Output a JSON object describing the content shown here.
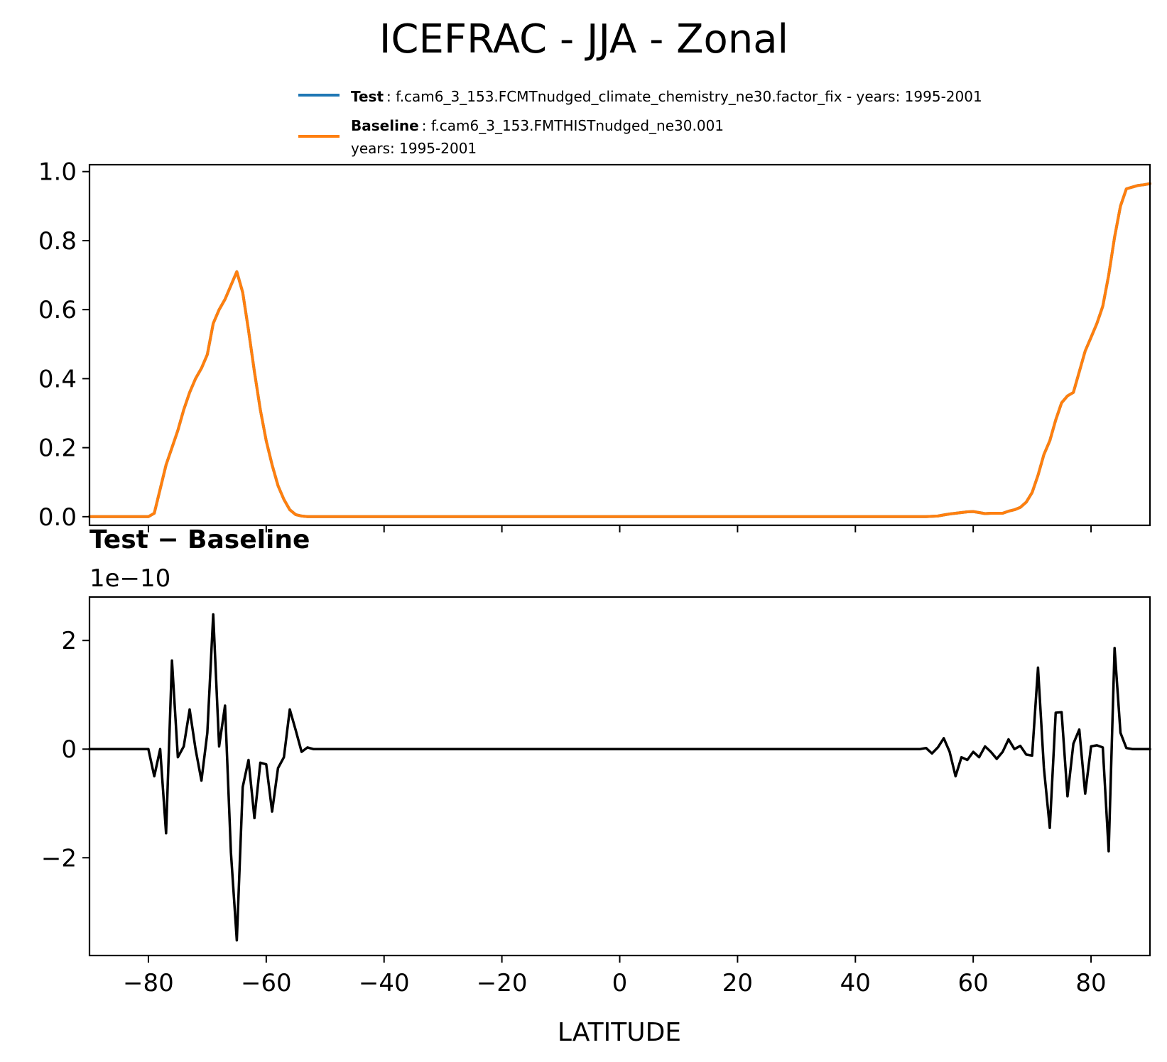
{
  "figure": {
    "title": "ICEFRAC - JJA - Zonal",
    "legend": {
      "test": {
        "label": "Test",
        "desc": ": f.cam6_3_153.FCMTnudged_climate_chemistry_ne30.factor_fix - years: 1995-2001",
        "color": "#1f77b4"
      },
      "baseline": {
        "label": "Baseline",
        "desc": ": f.cam6_3_153.FMTHISTnudged_ne30.001",
        "desc2": "years: 1995-2001",
        "color": "#ff7f0e"
      }
    },
    "diff_title": "Test − Baseline",
    "offset_label": "1e−10",
    "xlabel": "LATITUDE"
  },
  "chart_data": [
    {
      "type": "line",
      "xlim": [
        -90,
        90
      ],
      "ylim": [
        -0.025,
        1.02
      ],
      "xticks": [
        -80,
        -60,
        -40,
        -20,
        0,
        20,
        40,
        60,
        80
      ],
      "yticks": [
        0.0,
        0.2,
        0.4,
        0.6,
        0.8,
        1.0
      ],
      "ytick_labels": [
        "0.0",
        "0.2",
        "0.4",
        "0.6",
        "0.8",
        "1.0"
      ],
      "series": [
        {
          "name": "Test",
          "color": "#1f77b4",
          "x": [
            -90,
            -80,
            -79,
            -78,
            -77,
            -76,
            -75,
            -74,
            -73,
            -72,
            -71,
            -70,
            -69,
            -68,
            -67,
            -66,
            -65,
            -64,
            -63,
            -62,
            -61,
            -60,
            -59,
            -58,
            -57,
            -56,
            -55,
            -54,
            -53,
            -50,
            0,
            50,
            52,
            54,
            55,
            56,
            58,
            59,
            60,
            61,
            62,
            63,
            64,
            65,
            66,
            67,
            68,
            69,
            70,
            71,
            72,
            73,
            74,
            75,
            76,
            77,
            78,
            79,
            80,
            81,
            82,
            83,
            84,
            85,
            86,
            87,
            88,
            89,
            90
          ],
          "y": [
            0,
            0,
            0.01,
            0.08,
            0.15,
            0.2,
            0.25,
            0.31,
            0.36,
            0.4,
            0.43,
            0.47,
            0.56,
            0.6,
            0.63,
            0.67,
            0.71,
            0.65,
            0.54,
            0.42,
            0.31,
            0.22,
            0.15,
            0.09,
            0.05,
            0.02,
            0.006,
            0.002,
            0.0,
            0.0,
            0.0,
            0.0,
            0.0,
            0.002,
            0.005,
            0.008,
            0.012,
            0.014,
            0.015,
            0.012,
            0.009,
            0.01,
            0.01,
            0.01,
            0.016,
            0.02,
            0.027,
            0.042,
            0.07,
            0.12,
            0.18,
            0.22,
            0.28,
            0.33,
            0.35,
            0.36,
            0.42,
            0.48,
            0.52,
            0.56,
            0.61,
            0.7,
            0.81,
            0.9,
            0.95,
            0.955,
            0.96,
            0.962,
            0.965
          ]
        },
        {
          "name": "Baseline",
          "color": "#ff7f0e",
          "x": [
            -90,
            -80,
            -79,
            -78,
            -77,
            -76,
            -75,
            -74,
            -73,
            -72,
            -71,
            -70,
            -69,
            -68,
            -67,
            -66,
            -65,
            -64,
            -63,
            -62,
            -61,
            -60,
            -59,
            -58,
            -57,
            -56,
            -55,
            -54,
            -53,
            -50,
            0,
            50,
            52,
            54,
            55,
            56,
            58,
            59,
            60,
            61,
            62,
            63,
            64,
            65,
            66,
            67,
            68,
            69,
            70,
            71,
            72,
            73,
            74,
            75,
            76,
            77,
            78,
            79,
            80,
            81,
            82,
            83,
            84,
            85,
            86,
            87,
            88,
            89,
            90
          ],
          "y": [
            0,
            0,
            0.01,
            0.08,
            0.15,
            0.2,
            0.25,
            0.31,
            0.36,
            0.4,
            0.43,
            0.47,
            0.56,
            0.6,
            0.63,
            0.67,
            0.71,
            0.65,
            0.54,
            0.42,
            0.31,
            0.22,
            0.15,
            0.09,
            0.05,
            0.02,
            0.006,
            0.002,
            0.0,
            0.0,
            0.0,
            0.0,
            0.0,
            0.002,
            0.005,
            0.008,
            0.012,
            0.014,
            0.015,
            0.012,
            0.009,
            0.01,
            0.01,
            0.01,
            0.016,
            0.02,
            0.027,
            0.042,
            0.07,
            0.12,
            0.18,
            0.22,
            0.28,
            0.33,
            0.35,
            0.36,
            0.42,
            0.48,
            0.52,
            0.56,
            0.61,
            0.7,
            0.81,
            0.9,
            0.95,
            0.955,
            0.96,
            0.962,
            0.965
          ]
        }
      ]
    },
    {
      "type": "line",
      "xlim": [
        -90,
        90
      ],
      "ylim": [
        -3.8,
        2.8
      ],
      "xticks": [
        -80,
        -60,
        -40,
        -20,
        0,
        20,
        40,
        60,
        80
      ],
      "xtick_labels": [
        "−80",
        "−60",
        "−40",
        "−20",
        "0",
        "20",
        "40",
        "60",
        "80"
      ],
      "yticks": [
        -2,
        0,
        2
      ],
      "ytick_labels": [
        "−2",
        "0",
        "2"
      ],
      "series": [
        {
          "name": "Test − Baseline",
          "color": "#000000",
          "x": [
            -90,
            -80,
            -79,
            -78,
            -77,
            -76,
            -75,
            -74,
            -73,
            -72,
            -71,
            -70,
            -69,
            -68,
            -67,
            -66,
            -65,
            -64,
            -63,
            -62,
            -61,
            -60,
            -59,
            -58,
            -57,
            -56,
            -55,
            -54,
            -53,
            -52,
            0,
            51,
            52,
            53,
            54,
            55,
            56,
            57,
            58,
            59,
            60,
            61,
            62,
            63,
            64,
            65,
            66,
            67,
            68,
            69,
            70,
            71,
            72,
            73,
            74,
            75,
            76,
            77,
            78,
            79,
            80,
            81,
            82,
            83,
            84,
            85,
            86,
            87,
            88,
            89,
            90
          ],
          "y": [
            0,
            0,
            -0.5,
            0,
            -1.55,
            1.63,
            -0.15,
            0.05,
            0.73,
            0,
            -0.58,
            0.3,
            2.48,
            0.05,
            0.8,
            -1.9,
            -3.52,
            -0.7,
            -0.2,
            -1.27,
            -0.25,
            -0.28,
            -1.15,
            -0.35,
            -0.15,
            0.73,
            0.35,
            -0.05,
            0.03,
            0,
            0,
            0,
            0.02,
            -0.08,
            0.03,
            0.2,
            -0.05,
            -0.5,
            -0.15,
            -0.2,
            -0.05,
            -0.15,
            0.05,
            -0.05,
            -0.18,
            -0.05,
            0.18,
            0.0,
            0.06,
            -0.1,
            -0.12,
            1.5,
            -0.35,
            -1.45,
            0.67,
            0.68,
            -0.87,
            0.1,
            0.36,
            -0.82,
            0.05,
            0.07,
            0.03,
            -1.88,
            1.86,
            0.3,
            0.02,
            0,
            0,
            0,
            0
          ]
        }
      ]
    }
  ]
}
